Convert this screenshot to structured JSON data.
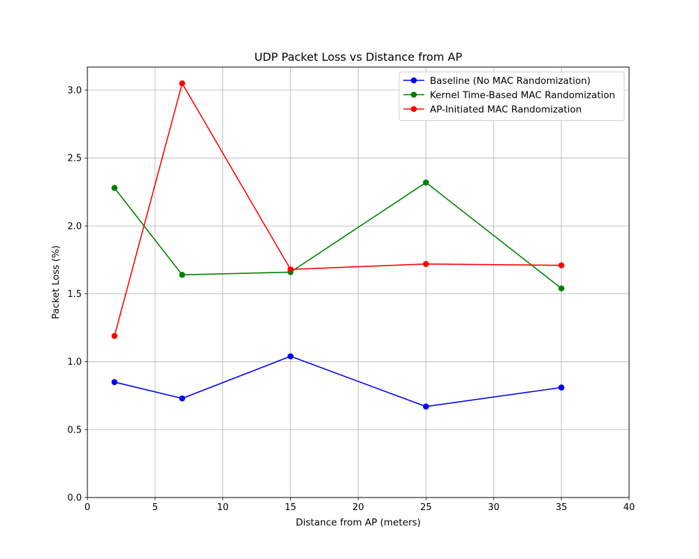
{
  "chart_data": {
    "type": "line",
    "title": "UDP Packet Loss vs Distance from AP",
    "xlabel": "Distance from AP (meters)",
    "ylabel": "Packet Loss (%)",
    "xlim": [
      0,
      40
    ],
    "ylim": [
      0,
      3.17
    ],
    "xticks": [
      0,
      5,
      10,
      15,
      20,
      25,
      30,
      35,
      40
    ],
    "yticks": [
      0.0,
      0.5,
      1.0,
      1.5,
      2.0,
      2.5,
      3.0
    ],
    "xtick_labels": [
      "0",
      "5",
      "10",
      "15",
      "20",
      "25",
      "30",
      "35",
      "40"
    ],
    "ytick_labels": [
      "0.0",
      "0.5",
      "1.0",
      "1.5",
      "2.0",
      "2.5",
      "3.0"
    ],
    "grid": true,
    "legend_position": "top-right",
    "x": [
      2,
      7,
      15,
      25,
      35
    ],
    "series": [
      {
        "name": "Baseline (No MAC Randomization)",
        "color": "#0000ff",
        "marker": "circle",
        "values": [
          0.85,
          0.73,
          1.04,
          0.67,
          0.81
        ]
      },
      {
        "name": "Kernel Time-Based MAC Randomization",
        "color": "#008000",
        "marker": "circle",
        "values": [
          2.28,
          1.64,
          1.66,
          2.32,
          1.54
        ]
      },
      {
        "name": "AP-Initiated MAC Randomization",
        "color": "#ff0000",
        "marker": "circle",
        "values": [
          1.19,
          3.05,
          1.68,
          1.72,
          1.71
        ]
      }
    ]
  }
}
